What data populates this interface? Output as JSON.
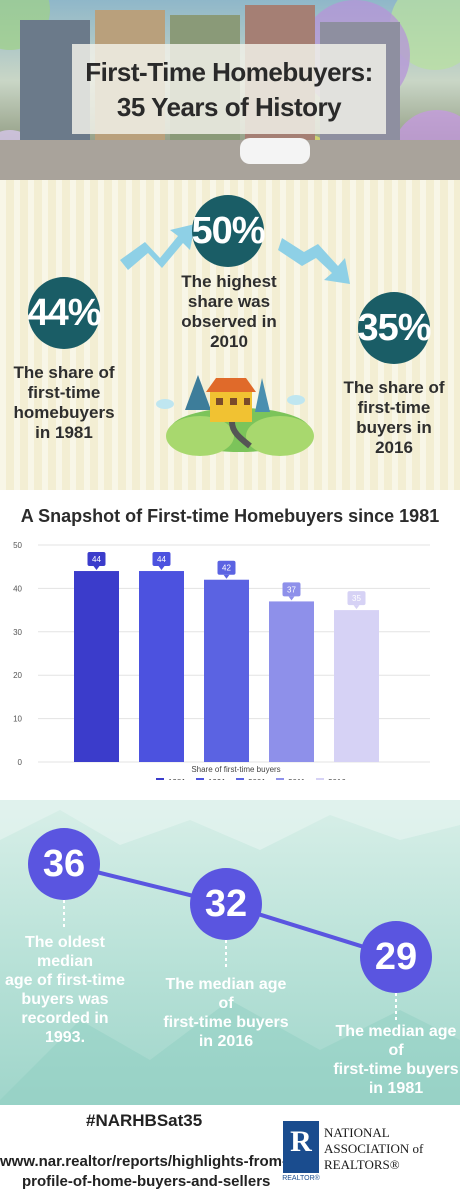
{
  "header": {
    "title_line1": "First-Time Homebuyers:",
    "title_line2": "35 Years of History"
  },
  "stats": {
    "left": {
      "value": "44%",
      "text": [
        "The share of",
        "first-time",
        "homebuyers",
        "in 1981"
      ]
    },
    "middle": {
      "value": "50%",
      "text": [
        "The highest",
        "share was",
        "observed in",
        "2010"
      ]
    },
    "right": {
      "value": "35%",
      "text": [
        "The share of",
        "first-time",
        "buyers in",
        "2016"
      ]
    }
  },
  "chart_data": {
    "type": "bar",
    "title": "A Snapshot of First-time Homebuyers since 1981",
    "xlabel": "Share of first-time buyers",
    "ylabel": "",
    "ylim": [
      0,
      50
    ],
    "yticks": [
      0,
      10,
      20,
      30,
      40,
      50
    ],
    "grid": true,
    "legend_position": "bottom",
    "series": [
      {
        "name": "1981",
        "value": 44,
        "color": "#3b3ccb"
      },
      {
        "name": "1991",
        "value": 44,
        "color": "#4c52df"
      },
      {
        "name": "2001",
        "value": 42,
        "color": "#5b63e2"
      },
      {
        "name": "2011",
        "value": 37,
        "color": "#8e90ea"
      },
      {
        "name": "2016",
        "value": 35,
        "color": "#d6d2f5"
      }
    ]
  },
  "ages": {
    "items": [
      {
        "value": "36",
        "text": [
          "The oldest median",
          "age of first-time",
          "buyers was",
          "recorded in 1993."
        ]
      },
      {
        "value": "32",
        "text": [
          "The median age of",
          "first-time buyers",
          "in 2016"
        ]
      },
      {
        "value": "29",
        "text": [
          "The median age of",
          "first-time buyers",
          "in 1981"
        ]
      }
    ]
  },
  "footer": {
    "hashtag": "#NARHBSat35",
    "url_line1": "www.nar.realtor/reports/highlights-from-the-",
    "url_line2": "profile-of-home-buyers-and-sellers",
    "logo_letter": "R",
    "logo_sub": "REALTOR®",
    "org_line1": "NATIONAL",
    "org_line2": "ASSOCIATION of",
    "org_line3": "REALTORS®"
  },
  "colors": {
    "stat_circle": "#1a5d66",
    "age_circle": "#5a55e0",
    "arrow": "#8ed0e6",
    "logo": "#1a4c8e"
  }
}
